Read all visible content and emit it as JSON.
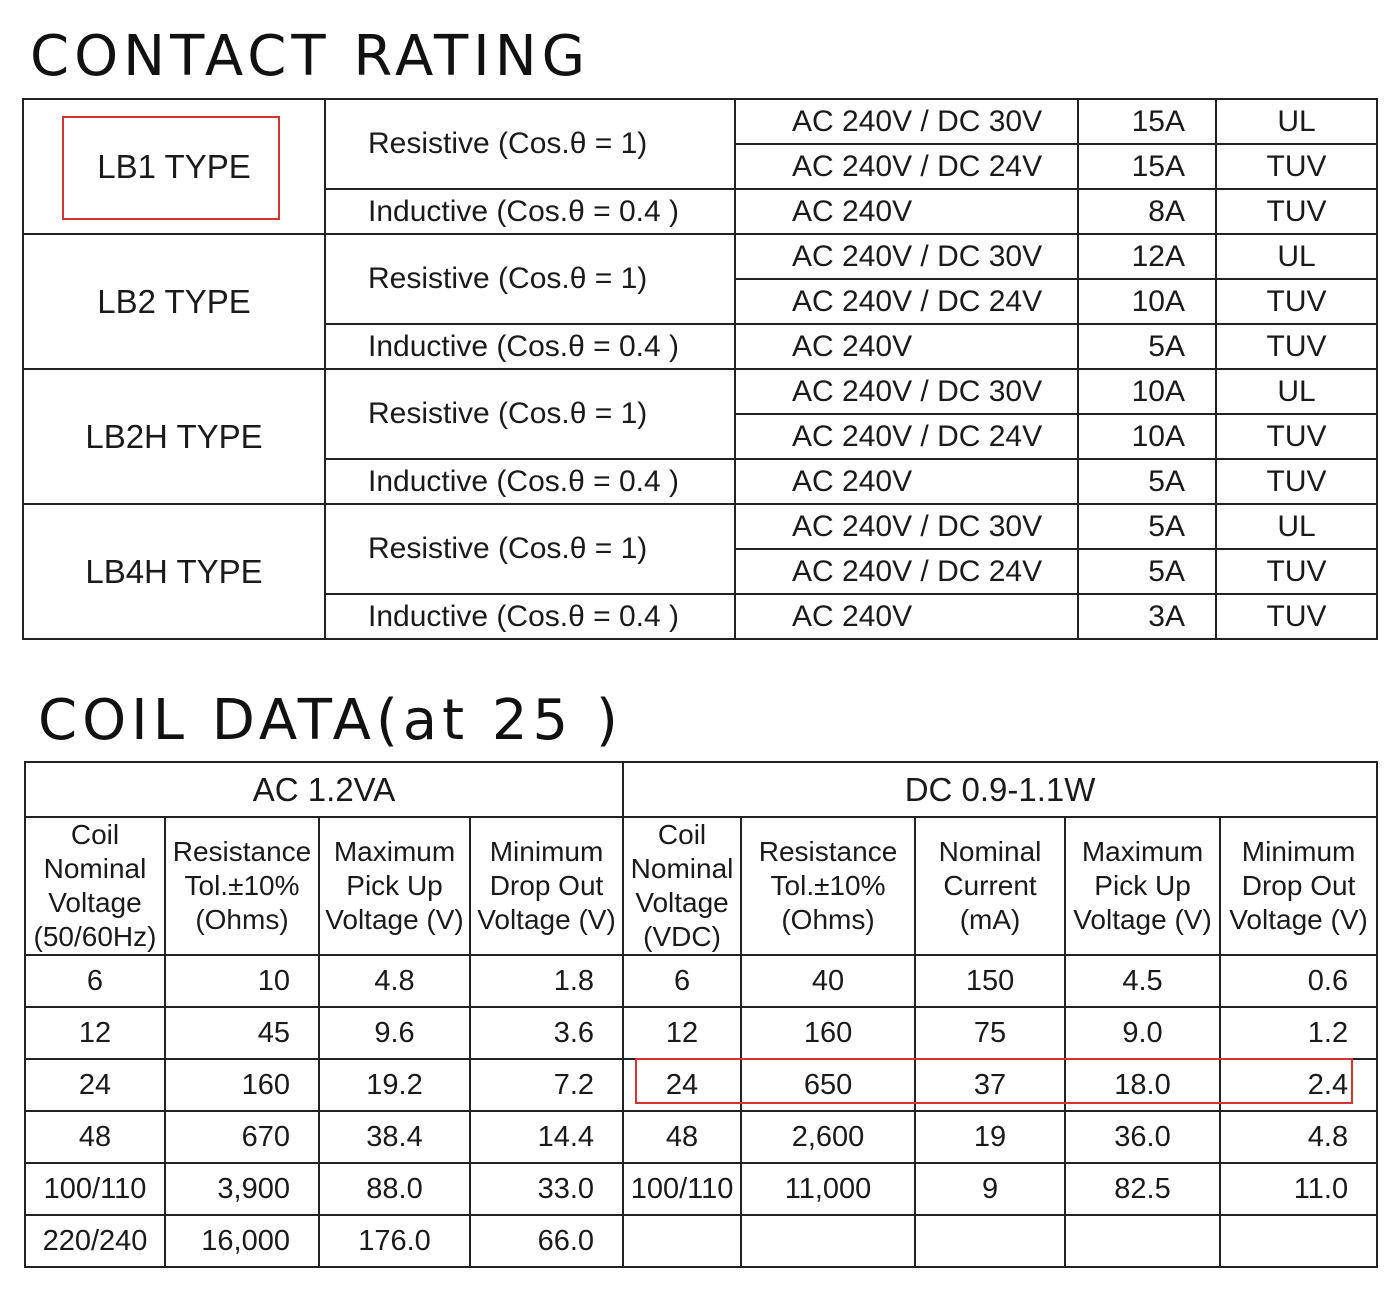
{
  "contact_title": "CONTACT RATING",
  "coil_title": "COIL DATA(at 25 )",
  "contact_types": [
    {
      "type": "LB1 TYPE",
      "resistive": "Resistive (Cos.θ = 1)",
      "inductive": "Inductive (Cos.θ = 0.4 )",
      "rows": [
        {
          "voltage": "AC 240V / DC 30V",
          "current": "15A",
          "cert": "UL"
        },
        {
          "voltage": "AC 240V / DC 24V",
          "current": "15A",
          "cert": "TUV"
        },
        {
          "voltage": "AC 240V",
          "current": "8A",
          "cert": "TUV"
        }
      ]
    },
    {
      "type": "LB2 TYPE",
      "resistive": "Resistive (Cos.θ = 1)",
      "inductive": "Inductive (Cos.θ = 0.4 )",
      "rows": [
        {
          "voltage": "AC 240V / DC 30V",
          "current": "12A",
          "cert": "UL"
        },
        {
          "voltage": "AC 240V / DC 24V",
          "current": "10A",
          "cert": "TUV"
        },
        {
          "voltage": "AC 240V",
          "current": "5A",
          "cert": "TUV"
        }
      ]
    },
    {
      "type": "LB2H TYPE",
      "resistive": "Resistive (Cos.θ = 1)",
      "inductive": "Inductive (Cos.θ = 0.4 )",
      "rows": [
        {
          "voltage": "AC 240V / DC 30V",
          "current": "10A",
          "cert": "UL"
        },
        {
          "voltage": "AC 240V / DC 24V",
          "current": "10A",
          "cert": "TUV"
        },
        {
          "voltage": "AC 240V",
          "current": "5A",
          "cert": "TUV"
        }
      ]
    },
    {
      "type": "LB4H TYPE",
      "resistive": "Resistive (Cos.θ = 1)",
      "inductive": "Inductive (Cos.θ = 0.4 )",
      "rows": [
        {
          "voltage": "AC 240V / DC 30V",
          "current": "5A",
          "cert": "UL"
        },
        {
          "voltage": "AC 240V / DC 24V",
          "current": "5A",
          "cert": "TUV"
        },
        {
          "voltage": "AC 240V",
          "current": "3A",
          "cert": "TUV"
        }
      ]
    }
  ],
  "coil": {
    "ac_group": "AC  1.2VA",
    "dc_group": "DC  0.9-1.1W",
    "ac_headers": [
      "Coil\nNominal\nVoltage\n(50/60Hz)",
      "Resistance\nTol.±10%\n(Ohms)",
      "Maximum\nPick Up\nVoltage (V)",
      "Minimum\nDrop Out\nVoltage (V)"
    ],
    "dc_headers": [
      "Coil\nNominal\nVoltage\n(VDC)",
      "Resistance\nTol.±10%\n(Ohms)",
      "Nominal\nCurrent\n(mA)",
      "Maximum\nPick Up\nVoltage (V)",
      "Minimum\nDrop Out\nVoltage (V)"
    ],
    "ac_rows": [
      [
        "6",
        "10",
        "4.8",
        "1.8"
      ],
      [
        "12",
        "45",
        "9.6",
        "3.6"
      ],
      [
        "24",
        "160",
        "19.2",
        "7.2"
      ],
      [
        "48",
        "670",
        "38.4",
        "14.4"
      ],
      [
        "100/110",
        "3,900",
        "88.0",
        "33.0"
      ],
      [
        "220/240",
        "16,000",
        "176.0",
        "66.0"
      ]
    ],
    "dc_rows": [
      [
        "6",
        "40",
        "150",
        "4.5",
        "0.6"
      ],
      [
        "12",
        "160",
        "75",
        "9.0",
        "1.2"
      ],
      [
        "24",
        "650",
        "37",
        "18.0",
        "2.4"
      ],
      [
        "48",
        "2,600",
        "19",
        "36.0",
        "4.8"
      ],
      [
        "100/110",
        "11,000",
        "9",
        "82.5",
        "11.0"
      ],
      [
        "",
        "",
        "",
        "",
        ""
      ]
    ]
  },
  "highlight_color": "#d93030"
}
